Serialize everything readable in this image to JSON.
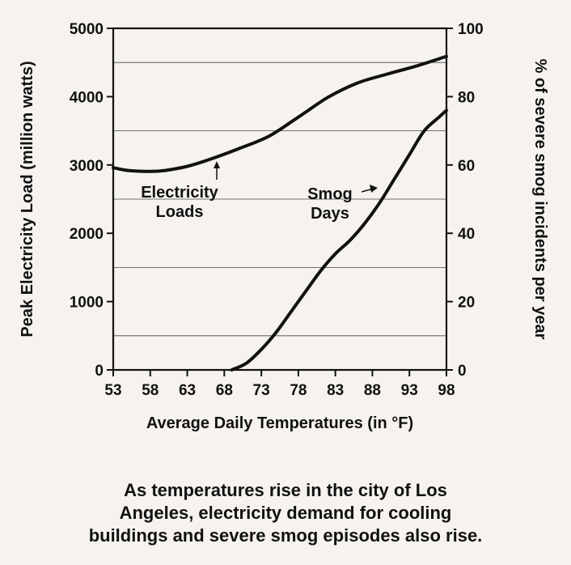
{
  "chart_data": {
    "type": "line",
    "x_label": "Average Daily Temperatures (in °F)",
    "x_ticks": [
      53,
      58,
      63,
      68,
      73,
      78,
      83,
      88,
      93,
      98
    ],
    "xlim": [
      53,
      98
    ],
    "y_left_label": "Peak Electricity Load (million watts)",
    "y_left_ticks": [
      0,
      1000,
      2000,
      3000,
      4000,
      5000
    ],
    "y_left_lim": [
      0,
      5000
    ],
    "y_right_label": "% of severe smog incidents per year",
    "y_right_ticks": [
      0,
      20,
      40,
      60,
      80,
      100
    ],
    "y_right_lim": [
      0,
      100
    ],
    "series": [
      {
        "name": "Electricity Loads",
        "axis": "left",
        "annotation": [
          "Electricity",
          "Loads"
        ],
        "x": [
          53,
          55,
          58,
          60,
          63,
          66,
          70,
          74,
          78,
          82,
          86,
          90,
          94,
          98
        ],
        "y": [
          2960,
          2920,
          2905,
          2920,
          2980,
          3080,
          3240,
          3420,
          3700,
          3990,
          4200,
          4330,
          4450,
          4590
        ]
      },
      {
        "name": "Smog Days",
        "axis": "right",
        "annotation": [
          "Smog",
          "Days"
        ],
        "x": [
          69,
          71,
          73,
          75,
          77,
          79,
          81,
          83,
          85,
          87,
          89,
          91,
          93,
          95,
          97,
          98
        ],
        "y": [
          0,
          2,
          6,
          11,
          17,
          23,
          29,
          34,
          38,
          43,
          49,
          56,
          63,
          70,
          74,
          76
        ]
      }
    ]
  },
  "caption": [
    "As temperatures rise in the city of Los",
    "Angeles, electricity demand for cooling",
    "buildings and severe smog episodes also rise."
  ]
}
